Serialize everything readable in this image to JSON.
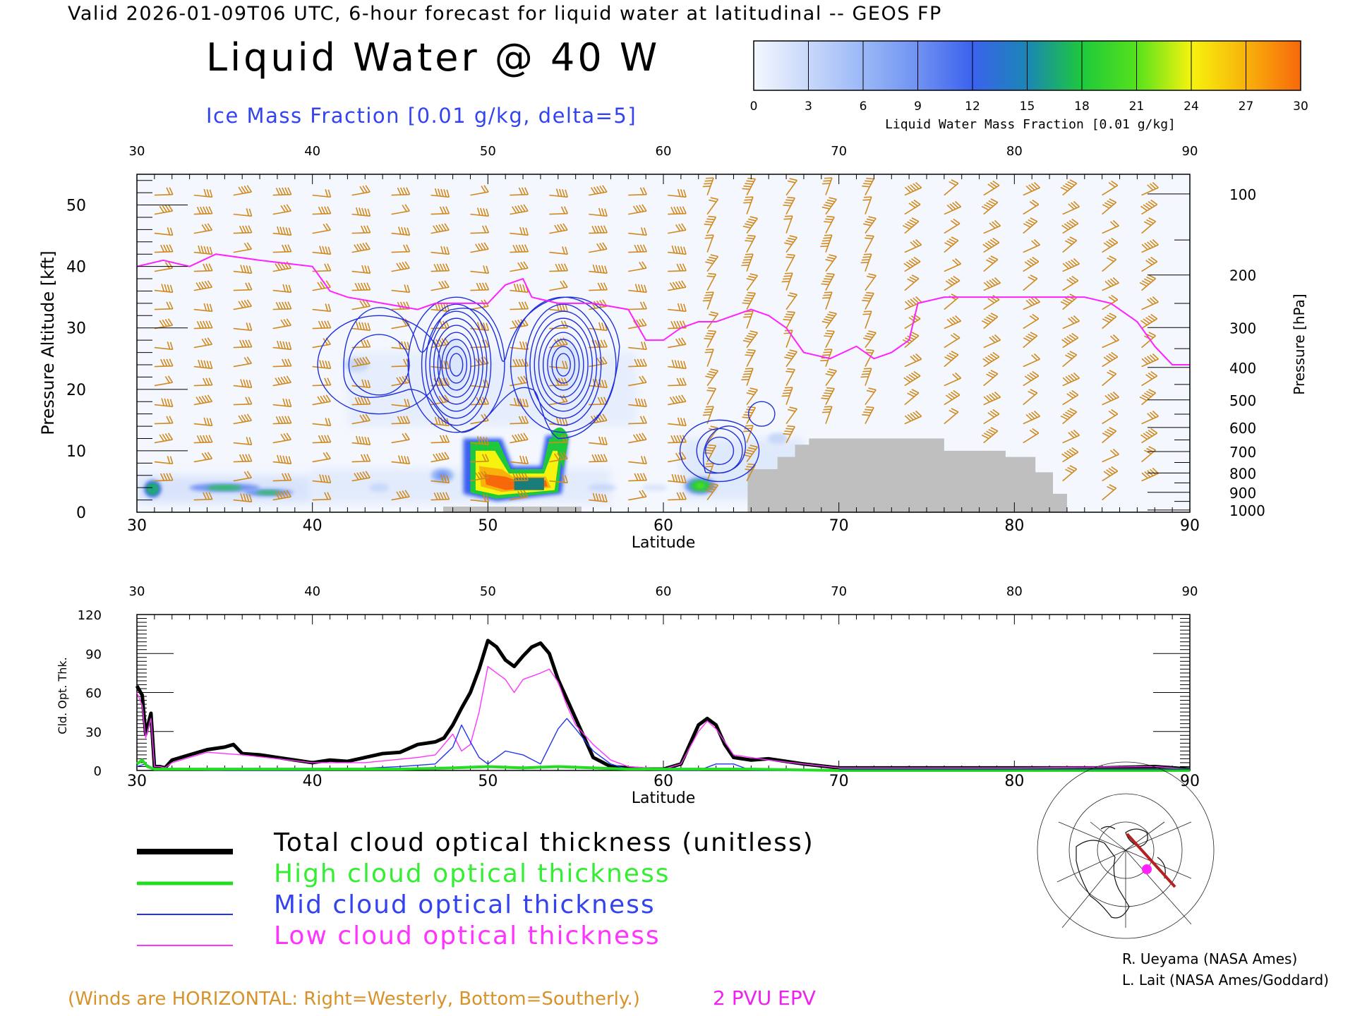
{
  "header": {
    "valid_line": "Valid 2026-01-09T06 UTC, 6-hour forecast for liquid water at latitudinal -- GEOS FP",
    "title": "Liquid Water @ 40 W",
    "subtitle": "Ice Mass Fraction [0.01 g/kg, delta=5]"
  },
  "colorbar": {
    "label": "Liquid Water Mass Fraction [0.01 g/kg]",
    "ticks": [
      "0",
      "3",
      "6",
      "9",
      "12",
      "15",
      "18",
      "21",
      "24",
      "27",
      "30"
    ],
    "colors": [
      "#f4f7fe",
      "#c8d8fa",
      "#9ab8f7",
      "#6f92f2",
      "#3b62ee",
      "#1a86b4",
      "#1ec83c",
      "#55e21c",
      "#f6f30e",
      "#f8b20b",
      "#f7680b"
    ]
  },
  "top_panel": {
    "top_ticks": [
      "30",
      "40",
      "50",
      "60",
      "70",
      "80",
      "90"
    ],
    "bottom_ticks": [
      "30",
      "40",
      "50",
      "60",
      "70",
      "80",
      "90"
    ],
    "xlabel": "Latitude",
    "ylabel_left": "Pressure Altitude [kft]",
    "left_ticks": [
      "0",
      "10",
      "20",
      "30",
      "40",
      "50"
    ],
    "ylabel_right": "Pressure [hPa]",
    "right_ticks": [
      "100",
      "200",
      "300",
      "400",
      "500",
      "600",
      "700",
      "800",
      "900",
      "1000"
    ]
  },
  "bottom_panel": {
    "top_ticks": [
      "30",
      "40",
      "50",
      "60",
      "70",
      "80",
      "90"
    ],
    "bottom_ticks": [
      "30",
      "40",
      "50",
      "60",
      "70",
      "80",
      "90"
    ],
    "xlabel": "Latitude",
    "ylabel": "Cld. Opt. Thk.",
    "left_ticks": [
      "0",
      "30",
      "60",
      "90",
      "120"
    ]
  },
  "legend": [
    {
      "label": "Total cloud optical thickness (unitless)",
      "color": "#000000"
    },
    {
      "label": "High cloud optical thickness",
      "color": "#22dd22"
    },
    {
      "label": "Mid cloud optical thickness",
      "color": "#2233ee"
    },
    {
      "label": "Low cloud optical thickness",
      "color": "#ff33ff"
    }
  ],
  "footer": {
    "winds_note": "(Winds are HORIZONTAL: Right=Westerly, Bottom=Southerly.)",
    "pvu_label": "2 PVU EPV",
    "credit_1": "R. Ueyama (NASA Ames)",
    "credit_2": "L. Lait (NASA Ames/Goddard)"
  },
  "chart_data": [
    {
      "type": "heatmap",
      "title": "Liquid Water @ 40 W",
      "xlabel": "Latitude",
      "ylabel": "Pressure Altitude [kft]",
      "xlim": [
        30,
        90
      ],
      "ylim": [
        0,
        55
      ],
      "pressure_ticks_hPa": [
        100,
        200,
        300,
        400,
        500,
        600,
        700,
        800,
        900,
        1000
      ],
      "liquid_water_blobs": [
        {
          "lat": 30.9,
          "alt_kft": 4,
          "max": 14
        },
        {
          "lat": 35.5,
          "alt_kft": 4,
          "max": 9
        },
        {
          "lat": 38,
          "alt_kft": 3,
          "max": 6
        },
        {
          "lat": 52,
          "alt_kft": 6,
          "max": 27
        },
        {
          "lat": 49.8,
          "alt_kft": 9,
          "max": 20
        },
        {
          "lat": 53.6,
          "alt_kft": 10,
          "max": 18
        },
        {
          "lat": 62,
          "alt_kft": 4.5,
          "max": 15
        }
      ],
      "terrain_kft": [
        [
          64.8,
          0
        ],
        [
          64.8,
          7
        ],
        [
          66.5,
          7
        ],
        [
          66.5,
          9
        ],
        [
          67.5,
          9
        ],
        [
          67.5,
          11
        ],
        [
          68.3,
          11
        ],
        [
          68.3,
          12
        ],
        [
          76,
          12
        ],
        [
          76,
          10
        ],
        [
          79.5,
          10
        ],
        [
          79.5,
          9
        ],
        [
          81.2,
          9
        ],
        [
          81.2,
          6.5
        ],
        [
          82.2,
          6.5
        ],
        [
          82.2,
          3
        ],
        [
          83,
          3
        ],
        [
          83,
          0
        ]
      ],
      "epv_2pvu_kft": [
        [
          30,
          40
        ],
        [
          31.5,
          41
        ],
        [
          33,
          40
        ],
        [
          34.5,
          42
        ],
        [
          37,
          41
        ],
        [
          40,
          40
        ],
        [
          41,
          36
        ],
        [
          42,
          35
        ],
        [
          44,
          34
        ],
        [
          46,
          33
        ],
        [
          47,
          34
        ],
        [
          48.5,
          34
        ],
        [
          50,
          34
        ],
        [
          51,
          37
        ],
        [
          52,
          38
        ],
        [
          52.5,
          35
        ],
        [
          54,
          34
        ],
        [
          56,
          34
        ],
        [
          58,
          33
        ],
        [
          59,
          28
        ],
        [
          60,
          28
        ],
        [
          61,
          30
        ],
        [
          62,
          31
        ],
        [
          63,
          31
        ],
        [
          65,
          33
        ],
        [
          66,
          32
        ],
        [
          67,
          30
        ],
        [
          68,
          26
        ],
        [
          69.5,
          25
        ],
        [
          71,
          27
        ],
        [
          72,
          25
        ],
        [
          73,
          26
        ],
        [
          74,
          28
        ],
        [
          74.5,
          34
        ],
        [
          76,
          35
        ],
        [
          79,
          35
        ],
        [
          82,
          35
        ],
        [
          84,
          35
        ],
        [
          85.5,
          34
        ],
        [
          87,
          31
        ],
        [
          88,
          27
        ],
        [
          89,
          24
        ],
        [
          90,
          24
        ]
      ],
      "ice_contours": [
        {
          "lat": 43.8,
          "alt_kft": 24,
          "rx": 2.8,
          "ry": 8,
          "levels": 2
        },
        {
          "lat": 48.2,
          "alt_kft": 24,
          "rx": 2.2,
          "ry": 11,
          "levels": 9
        },
        {
          "lat": 54.3,
          "alt_kft": 24,
          "rx": 2.4,
          "ry": 11,
          "levels": 9
        },
        {
          "lat": 63.2,
          "alt_kft": 10,
          "rx": 1.8,
          "ry": 5,
          "levels": 3
        },
        {
          "lat": 65.6,
          "alt_kft": 16,
          "rx": 0.6,
          "ry": 2,
          "levels": 1
        }
      ]
    },
    {
      "type": "line",
      "xlabel": "Latitude",
      "ylabel": "Cld. Opt. Thk.",
      "xlim": [
        30,
        90
      ],
      "ylim": [
        0,
        120
      ],
      "series": [
        {
          "name": "Total cloud optical thickness (unitless)",
          "x": [
            30,
            30.3,
            30.5,
            30.8,
            31,
            31.3,
            31.6,
            32,
            33,
            34,
            35,
            35.5,
            36,
            37,
            38,
            39,
            40,
            41,
            42,
            43,
            44,
            45,
            46,
            47,
            47.5,
            48,
            48.5,
            49,
            49.5,
            50,
            50.5,
            51,
            51.5,
            52,
            52.5,
            53,
            53.5,
            54,
            54.5,
            55,
            55.5,
            56,
            57,
            58,
            59,
            60,
            61,
            61.5,
            62,
            62.5,
            63,
            63.5,
            64,
            65,
            66,
            67,
            68,
            70,
            75,
            80,
            85,
            88,
            90
          ],
          "y": [
            65,
            58,
            28,
            44,
            3,
            3,
            2,
            8,
            12,
            16,
            18,
            20,
            13,
            12,
            10,
            8,
            6,
            8,
            7,
            10,
            13,
            14,
            20,
            22,
            25,
            35,
            48,
            60,
            78,
            100,
            95,
            85,
            80,
            88,
            95,
            98,
            90,
            70,
            55,
            40,
            25,
            10,
            3,
            2,
            1,
            1,
            5,
            20,
            35,
            40,
            35,
            20,
            10,
            8,
            9,
            7,
            5,
            2,
            2,
            2,
            2,
            3,
            1
          ]
        },
        {
          "name": "High cloud optical thickness",
          "x": [
            30,
            30.3,
            30.6,
            31,
            35,
            40,
            45,
            48,
            50,
            52,
            54,
            56,
            58,
            60,
            65,
            70,
            80,
            90
          ],
          "y": [
            5,
            8,
            3,
            1,
            1,
            1,
            1,
            2,
            3,
            2,
            3,
            2,
            1,
            1,
            1,
            0,
            0,
            0
          ]
        },
        {
          "name": "Mid cloud optical thickness",
          "x": [
            30,
            30.5,
            31,
            35,
            40,
            42,
            45,
            47,
            48,
            48.5,
            49,
            49.5,
            50,
            51,
            52,
            53,
            54,
            54.5,
            55,
            56,
            57,
            58,
            60,
            62,
            63,
            64,
            65,
            70,
            90
          ],
          "y": [
            3,
            5,
            1,
            0,
            0,
            1,
            3,
            5,
            18,
            35,
            22,
            10,
            5,
            15,
            12,
            5,
            32,
            40,
            32,
            15,
            5,
            1,
            0,
            0,
            5,
            5,
            0,
            0,
            0
          ]
        },
        {
          "name": "Low cloud optical thickness",
          "x": [
            30,
            30.3,
            30.5,
            30.8,
            31,
            31.3,
            31.6,
            32,
            34,
            36,
            38,
            40,
            43,
            46,
            47,
            47.5,
            48,
            48.5,
            49,
            49.5,
            50,
            50.5,
            51,
            51.5,
            52,
            53,
            53.5,
            54,
            54.5,
            55,
            56,
            57,
            58,
            60,
            61,
            62,
            62.5,
            63,
            64,
            66,
            70,
            80,
            88,
            90
          ],
          "y": [
            60,
            50,
            25,
            40,
            3,
            3,
            2,
            6,
            14,
            12,
            9,
            6,
            6,
            10,
            12,
            20,
            28,
            15,
            20,
            45,
            80,
            75,
            70,
            60,
            70,
            75,
            78,
            68,
            50,
            35,
            20,
            8,
            3,
            1,
            5,
            30,
            38,
            32,
            12,
            8,
            2,
            2,
            3,
            1
          ]
        }
      ]
    }
  ]
}
